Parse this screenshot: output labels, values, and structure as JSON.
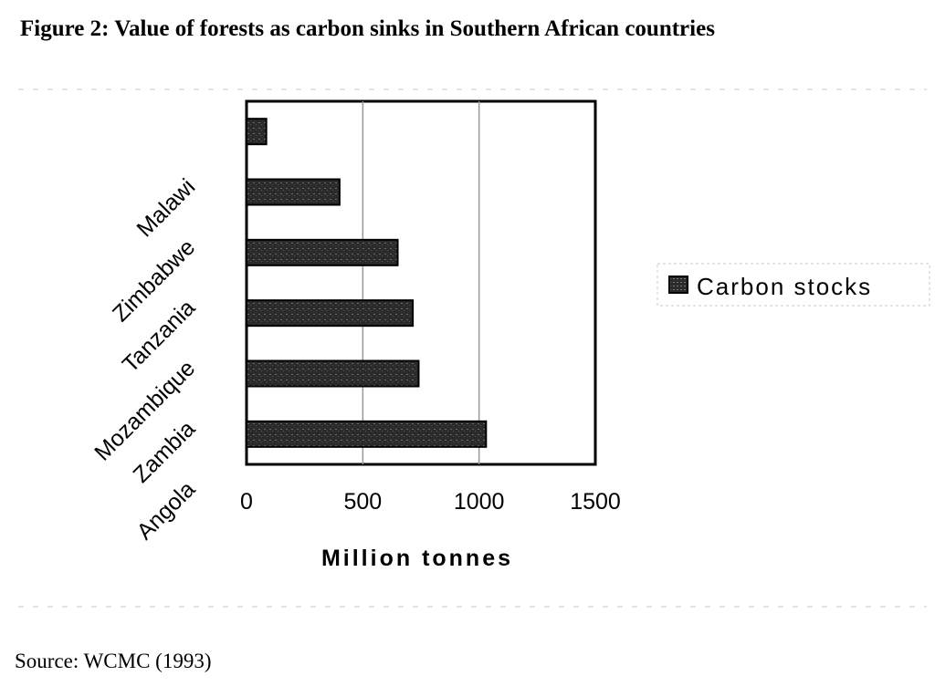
{
  "figure": {
    "title": "Figure 2:  Value of forests as carbon sinks in Southern African countries",
    "source": "Source:  WCMC (1993)"
  },
  "chart_data": {
    "type": "bar",
    "orientation": "horizontal",
    "categories": [
      "Angola",
      "Zambia",
      "Mozambique",
      "Tanzania",
      "Zimbabwe",
      "Malawi"
    ],
    "series": [
      {
        "name": "Carbon stocks",
        "values": [
          1030,
          740,
          715,
          650,
          400,
          85
        ]
      }
    ],
    "xlabel": "Million tonnes",
    "ylabel": "",
    "xlim": [
      0,
      1500
    ],
    "xticks": [
      0,
      500,
      1000,
      1500
    ],
    "grid": "vertical",
    "legend_position": "right",
    "colors": {
      "bar": "#2b2b2b",
      "frame": "#000000",
      "grid": "#9a9a9a"
    }
  }
}
